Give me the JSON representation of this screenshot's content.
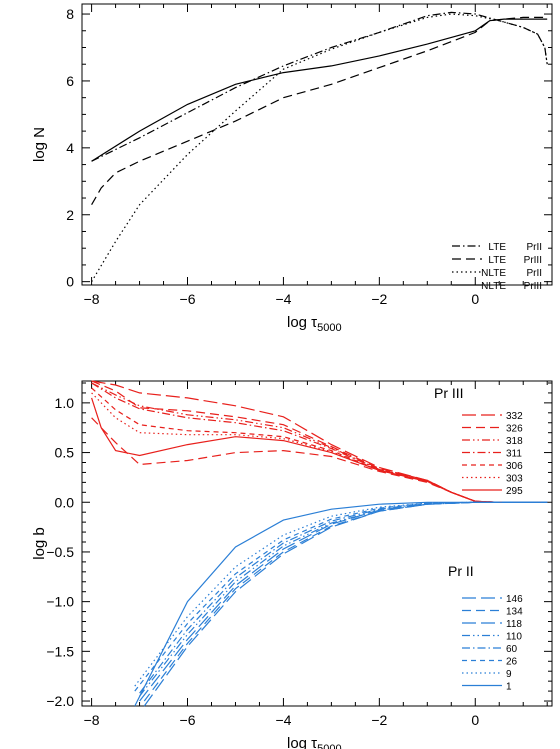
{
  "chart_data": [
    {
      "type": "line",
      "xlabel": "log τ",
      "xlabel_sub": "5000",
      "ylabel": "log N",
      "xlim": [
        -8.2,
        1.6
      ],
      "ylim": [
        -0.1,
        8.3
      ],
      "xticks": [
        -8,
        -6,
        -4,
        -2,
        0
      ],
      "yticks": [
        0,
        2,
        4,
        6,
        8
      ],
      "legend_position": "bottom-right",
      "series": [
        {
          "label": "LTE",
          "ion": "PrII",
          "dash": "dashdot",
          "x": [
            -8,
            -7,
            -6,
            -5,
            -4,
            -3,
            -2,
            -1,
            -0.5,
            0,
            0.5,
            1,
            1.3,
            1.45,
            1.5
          ],
          "y": [
            3.6,
            4.3,
            5.05,
            5.8,
            6.45,
            7.0,
            7.45,
            7.95,
            8.05,
            8.0,
            7.8,
            7.6,
            7.4,
            7.0,
            6.5
          ]
        },
        {
          "label": "LTE",
          "ion": "PrIII",
          "dash": "dash",
          "x": [
            -8,
            -7.8,
            -7.5,
            -7,
            -6,
            -5,
            -4,
            -3,
            -2,
            -1,
            0,
            0.3,
            0.6,
            1,
            1.3,
            1.5
          ],
          "y": [
            2.3,
            2.8,
            3.25,
            3.6,
            4.2,
            4.8,
            5.5,
            5.9,
            6.4,
            6.9,
            7.45,
            7.8,
            7.85,
            7.9,
            7.9,
            7.9
          ]
        },
        {
          "label": "NLTE",
          "ion": "PrII",
          "dash": "dot",
          "x": [
            -8,
            -7.5,
            -7,
            -6,
            -5,
            -4,
            -3,
            -2,
            -1,
            -0.5,
            0,
            0.5,
            1,
            1.3,
            1.45,
            1.5
          ],
          "y": [
            0,
            1.2,
            2.3,
            3.8,
            5.1,
            6.35,
            6.95,
            7.45,
            7.9,
            8.0,
            7.95,
            7.8,
            7.6,
            7.4,
            7.0,
            6.5
          ]
        },
        {
          "label": "NLTE",
          "ion": "PrIII",
          "dash": "solid",
          "x": [
            -8,
            -7,
            -6,
            -5,
            -4,
            -3,
            -2,
            -1,
            0,
            0.3,
            0.6,
            1,
            1.3,
            1.5
          ],
          "y": [
            3.6,
            4.5,
            5.3,
            5.9,
            6.25,
            6.45,
            6.75,
            7.1,
            7.5,
            7.8,
            7.85,
            7.85,
            7.85,
            7.85
          ]
        }
      ]
    },
    {
      "type": "line",
      "xlabel": "log τ",
      "xlabel_sub": "5000",
      "ylabel": "log b",
      "xlim": [
        -8.2,
        1.6
      ],
      "ylim": [
        -2.05,
        1.22
      ],
      "xticks": [
        -8,
        -6,
        -4,
        -2,
        0
      ],
      "yticks": [
        -2.0,
        -1.5,
        -1.0,
        -0.5,
        0.0,
        0.5,
        1.0
      ],
      "ytick_labels": [
        "−2.0",
        "−1.5",
        "−1.0",
        "−0.5",
        "0.0",
        "0.5",
        "1.0"
      ],
      "groups": [
        {
          "title": "Pr III",
          "color": "#e8201c",
          "series": [
            {
              "label": "332",
              "dash": "longdash",
              "x": [
                -8,
                -7.5,
                -7,
                -6,
                -5,
                -4,
                -3,
                -2,
                -1,
                -0.5,
                0,
                0.5,
                1,
                1.5
              ],
              "y": [
                1.25,
                1.18,
                1.1,
                1.05,
                0.97,
                0.86,
                0.58,
                0.35,
                0.22,
                0.1,
                0.01,
                0,
                0,
                0
              ]
            },
            {
              "label": "326",
              "dash": "dash",
              "x": [
                -8,
                -7.5,
                -7,
                -6,
                -5,
                -4,
                -3,
                -2,
                -1,
                -0.5,
                0,
                0.5,
                1,
                1.5
              ],
              "y": [
                1.22,
                1.12,
                0.95,
                0.92,
                0.86,
                0.78,
                0.56,
                0.34,
                0.22,
                0.1,
                0.01,
                0,
                0,
                0
              ]
            },
            {
              "label": "318",
              "dash": "dashdotdot",
              "x": [
                -8,
                -7.5,
                -7,
                -6,
                -5,
                -4,
                -3,
                -2,
                -1,
                -0.5,
                0,
                0.5,
                1,
                1.5
              ],
              "y": [
                1.2,
                1.08,
                0.97,
                0.88,
                0.83,
                0.75,
                0.55,
                0.33,
                0.22,
                0.1,
                0.01,
                0,
                0,
                0
              ]
            },
            {
              "label": "311",
              "dash": "dashdot",
              "x": [
                -8,
                -7.5,
                -7,
                -6,
                -5,
                -4,
                -3,
                -2,
                -1,
                -0.5,
                0,
                0.5,
                1,
                1.5
              ],
              "y": [
                1.2,
                1.05,
                0.94,
                0.85,
                0.8,
                0.72,
                0.54,
                0.33,
                0.22,
                0.1,
                0.01,
                0,
                0,
                0
              ]
            },
            {
              "label": "306",
              "dash": "shortdash",
              "x": [
                -8,
                -7.5,
                -7,
                -6,
                -5,
                -4,
                -3,
                -2,
                -1,
                -0.5,
                0,
                0.5,
                1,
                1.5
              ],
              "y": [
                1.15,
                0.93,
                0.78,
                0.72,
                0.7,
                0.66,
                0.52,
                0.32,
                0.21,
                0.1,
                0.01,
                0,
                0,
                0
              ]
            },
            {
              "label": "303",
              "dash": "dot",
              "x": [
                -8,
                -7.5,
                -7,
                -6,
                -5,
                -4,
                -3,
                -2,
                -1,
                -0.5,
                0,
                0.5,
                1,
                1.5
              ],
              "y": [
                1.1,
                0.85,
                0.7,
                0.68,
                0.68,
                0.64,
                0.51,
                0.32,
                0.21,
                0.1,
                0.01,
                0,
                0,
                0
              ]
            },
            {
              "label": "295",
              "dash": "solid",
              "x": [
                -8,
                -7.8,
                -7.5,
                -7,
                -6,
                -5,
                -4,
                -3,
                -2,
                -1,
                -0.5,
                0,
                0.5,
                1,
                1.5
              ],
              "y": [
                1.05,
                0.75,
                0.52,
                0.47,
                0.58,
                0.66,
                0.62,
                0.5,
                0.32,
                0.21,
                0.1,
                0.01,
                0,
                0,
                0
              ]
            },
            {
              "label": "",
              "dash": "dash",
              "x": [
                -8,
                -7.5,
                -7,
                -6,
                -5,
                -4,
                -3,
                -2,
                -1,
                -0.5,
                0,
                0.5,
                1,
                1.5
              ],
              "y": [
                0.85,
                0.6,
                0.38,
                0.42,
                0.5,
                0.52,
                0.46,
                0.31,
                0.2,
                0.1,
                0.01,
                0,
                0,
                0
              ]
            }
          ]
        },
        {
          "title": "Pr II",
          "color": "#2b7fd6",
          "series": [
            {
              "label": "146",
              "dash": "longdash",
              "x": [
                -6.9,
                -6,
                -5,
                -4,
                -3,
                -2,
                -1,
                0,
                0.5,
                1,
                1.5
              ],
              "y": [
                -2.05,
                -1.45,
                -0.9,
                -0.52,
                -0.25,
                -0.09,
                -0.02,
                0,
                0,
                0,
                0
              ]
            },
            {
              "label": "134",
              "dash": "dash",
              "x": [
                -6.9,
                -6,
                -5,
                -4,
                -3,
                -2,
                -1,
                0,
                0.5,
                1,
                1.5
              ],
              "y": [
                -2.0,
                -1.42,
                -0.87,
                -0.5,
                -0.24,
                -0.09,
                -0.02,
                0,
                0,
                0,
                0
              ]
            },
            {
              "label": "118",
              "dash": "longdash",
              "x": [
                -7.0,
                -6,
                -5,
                -4,
                -3,
                -2,
                -1,
                0,
                0.5,
                1,
                1.5
              ],
              "y": [
                -2.0,
                -1.38,
                -0.84,
                -0.47,
                -0.22,
                -0.08,
                -0.02,
                0,
                0,
                0,
                0
              ]
            },
            {
              "label": "110",
              "dash": "dashdotdot",
              "x": [
                -7.0,
                -6,
                -5,
                -4,
                -3,
                -2,
                -1,
                0,
                0.5,
                1,
                1.5
              ],
              "y": [
                -1.95,
                -1.33,
                -0.8,
                -0.44,
                -0.21,
                -0.08,
                -0.02,
                0,
                0,
                0,
                0
              ]
            },
            {
              "label": "60",
              "dash": "dashdot",
              "x": [
                -7.0,
                -6,
                -5,
                -4,
                -3,
                -2,
                -1,
                0,
                0.5,
                1,
                1.5
              ],
              "y": [
                -1.92,
                -1.28,
                -0.76,
                -0.41,
                -0.19,
                -0.07,
                -0.01,
                0,
                0,
                0,
                0
              ]
            },
            {
              "label": "26",
              "dash": "shortdash",
              "x": [
                -7.1,
                -6,
                -5,
                -4,
                -3,
                -2,
                -1,
                0,
                0.5,
                1,
                1.5
              ],
              "y": [
                -1.9,
                -1.22,
                -0.72,
                -0.38,
                -0.17,
                -0.06,
                -0.01,
                0,
                0,
                0,
                0
              ]
            },
            {
              "label": "9",
              "dash": "dot",
              "x": [
                -7.1,
                -6,
                -5,
                -4,
                -3,
                -2,
                -1,
                0,
                0.5,
                1,
                1.5
              ],
              "y": [
                -1.85,
                -1.15,
                -0.65,
                -0.33,
                -0.14,
                -0.05,
                -0.01,
                0,
                0,
                0,
                0
              ]
            },
            {
              "label": "1",
              "dash": "solid",
              "x": [
                -7.1,
                -6,
                -5,
                -4,
                -3,
                -2,
                -1,
                0,
                0.5,
                1,
                1.5
              ],
              "y": [
                -2.05,
                -1.0,
                -0.45,
                -0.18,
                -0.07,
                -0.02,
                0,
                0,
                0,
                0,
                0
              ]
            }
          ]
        }
      ]
    }
  ]
}
